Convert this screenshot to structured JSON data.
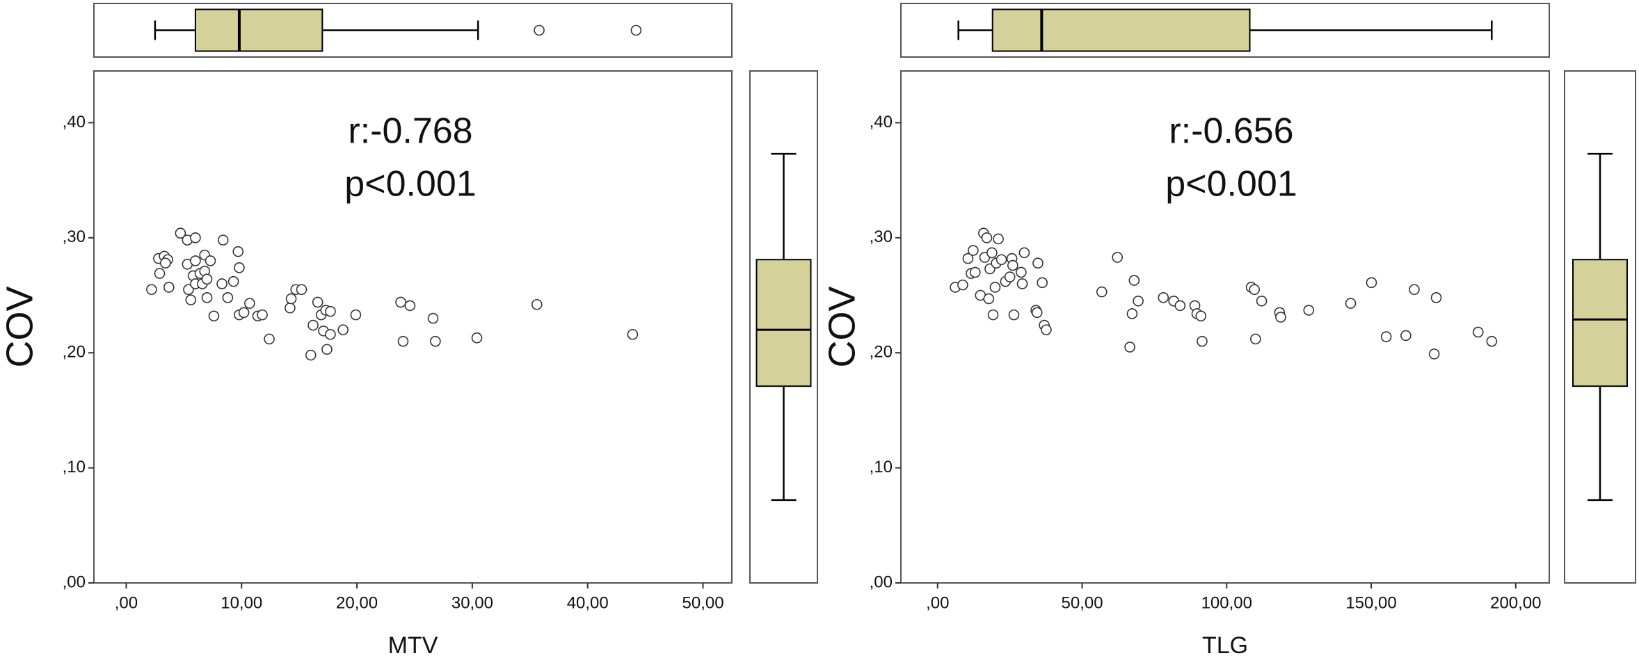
{
  "chart_data": [
    {
      "type": "scatter",
      "x_label": "MTV",
      "y_label": "COV",
      "annotations": [
        "r:-0.768",
        "p<0.001"
      ],
      "x": [
        2.2,
        2.9,
        2.8,
        3.3,
        3.6,
        3.4,
        3.7,
        4.7,
        5.3,
        5.3,
        5.4,
        5.6,
        5.8,
        6.0,
        6.0,
        6.0,
        6.4,
        6.6,
        6.8,
        6.8,
        7.0,
        7.0,
        7.3,
        7.6,
        8.3,
        8.4,
        8.8,
        9.3,
        9.7,
        9.8,
        9.8,
        10.2,
        10.7,
        11.4,
        11.8,
        12.4,
        14.2,
        14.3,
        14.7,
        15.2,
        16.0,
        16.2,
        16.6,
        16.9,
        17.1,
        17.3,
        17.4,
        17.7,
        17.7,
        18.8,
        19.9,
        23.8,
        24.6,
        24.0,
        26.6,
        26.8,
        30.4,
        35.6,
        43.9
      ],
      "values": [
        0.255,
        0.269,
        0.282,
        0.284,
        0.281,
        0.278,
        0.257,
        0.304,
        0.298,
        0.277,
        0.255,
        0.246,
        0.267,
        0.3,
        0.28,
        0.26,
        0.269,
        0.26,
        0.271,
        0.285,
        0.264,
        0.248,
        0.28,
        0.232,
        0.26,
        0.298,
        0.248,
        0.262,
        0.288,
        0.274,
        0.233,
        0.235,
        0.243,
        0.232,
        0.233,
        0.212,
        0.239,
        0.247,
        0.255,
        0.255,
        0.198,
        0.224,
        0.244,
        0.233,
        0.219,
        0.237,
        0.203,
        0.236,
        0.216,
        0.22,
        0.233,
        0.244,
        0.241,
        0.21,
        0.23,
        0.21,
        0.213,
        0.242,
        0.216
      ],
      "xlim": [
        -2.8,
        52.5
      ],
      "ylim": [
        0,
        0.445
      ],
      "xticks": [
        {
          "value": 0,
          "label": ",00"
        },
        {
          "value": 10,
          "label": "10,00"
        },
        {
          "value": 20,
          "label": "20,00"
        },
        {
          "value": 30,
          "label": "30,00"
        },
        {
          "value": 40,
          "label": "40,00"
        },
        {
          "value": 50,
          "label": "50,00"
        }
      ],
      "yticks": [
        {
          "value": 0,
          "label": ",00"
        },
        {
          "value": 0.1,
          "label": ",10"
        },
        {
          "value": 0.2,
          "label": ",20"
        },
        {
          "value": 0.3,
          "label": ",30"
        },
        {
          "value": 0.4,
          "label": ",40"
        }
      ],
      "marker_color": "#333333",
      "box_color": "#d5d19b",
      "x_box": {
        "whisker_low": 2.5,
        "q1": 6.0,
        "median": 9.8,
        "q3": 17.0,
        "whisker_high": 30.5,
        "outliers": [
          35.8,
          44.2
        ]
      },
      "y_box": {
        "whisker_low": 0.072,
        "q1": 0.171,
        "median": 0.22,
        "q3": 0.281,
        "whisker_high": 0.373,
        "outliers": []
      }
    },
    {
      "type": "scatter",
      "x_label": "TLG",
      "y_label": "COV",
      "annotations": [
        "r:-0.656",
        "p<0.001"
      ],
      "x": [
        6.1,
        8.7,
        10.5,
        11.6,
        12.3,
        13.0,
        14.8,
        15.9,
        16.3,
        17.0,
        17.7,
        18.1,
        18.8,
        19.2,
        19.9,
        20.3,
        21.0,
        22.1,
        23.5,
        25.0,
        25.7,
        26.0,
        26.4,
        28.9,
        29.3,
        30.0,
        34.0,
        34.4,
        34.7,
        36.2,
        36.9,
        37.6,
        56.8,
        62.2,
        66.5,
        67.3,
        68.0,
        69.4,
        78.1,
        81.7,
        83.9,
        89.0,
        89.7,
        91.1,
        91.5,
        108.5,
        109.6,
        110.0,
        112.1,
        118.3,
        118.7,
        128.4,
        142.9,
        150.1,
        155.2,
        162.0,
        164.9,
        172.5,
        171.8,
        187.0,
        191.7
      ],
      "values": [
        0.257,
        0.259,
        0.282,
        0.269,
        0.289,
        0.27,
        0.25,
        0.304,
        0.283,
        0.3,
        0.247,
        0.273,
        0.287,
        0.233,
        0.257,
        0.278,
        0.299,
        0.281,
        0.262,
        0.266,
        0.282,
        0.276,
        0.233,
        0.27,
        0.26,
        0.287,
        0.237,
        0.235,
        0.278,
        0.261,
        0.224,
        0.22,
        0.253,
        0.283,
        0.205,
        0.234,
        0.263,
        0.245,
        0.248,
        0.245,
        0.241,
        0.241,
        0.234,
        0.232,
        0.21,
        0.257,
        0.255,
        0.212,
        0.245,
        0.235,
        0.231,
        0.237,
        0.243,
        0.261,
        0.214,
        0.215,
        0.255,
        0.248,
        0.199,
        0.218,
        0.21
      ],
      "xlim": [
        -12.7,
        211.6
      ],
      "ylim": [
        0,
        0.445
      ],
      "xticks": [
        {
          "value": 0,
          "label": ",00"
        },
        {
          "value": 50,
          "label": "50,00"
        },
        {
          "value": 100,
          "label": "100,00"
        },
        {
          "value": 150,
          "label": "150,00"
        },
        {
          "value": 200,
          "label": "200,00"
        }
      ],
      "yticks": [
        {
          "value": 0,
          "label": ",00"
        },
        {
          "value": 0.1,
          "label": ",10"
        },
        {
          "value": 0.2,
          "label": ",20"
        },
        {
          "value": 0.3,
          "label": ",30"
        },
        {
          "value": 0.4,
          "label": ",40"
        }
      ],
      "marker_color": "#333333",
      "box_color": "#d5d19b",
      "x_box": {
        "whisker_low": 7.2,
        "q1": 19.0,
        "median": 36.0,
        "q3": 108.0,
        "whisker_high": 191.7,
        "outliers": []
      },
      "y_box": {
        "whisker_low": 0.072,
        "q1": 0.171,
        "median": 0.229,
        "q3": 0.281,
        "whisker_high": 0.373,
        "outliers": []
      }
    }
  ]
}
